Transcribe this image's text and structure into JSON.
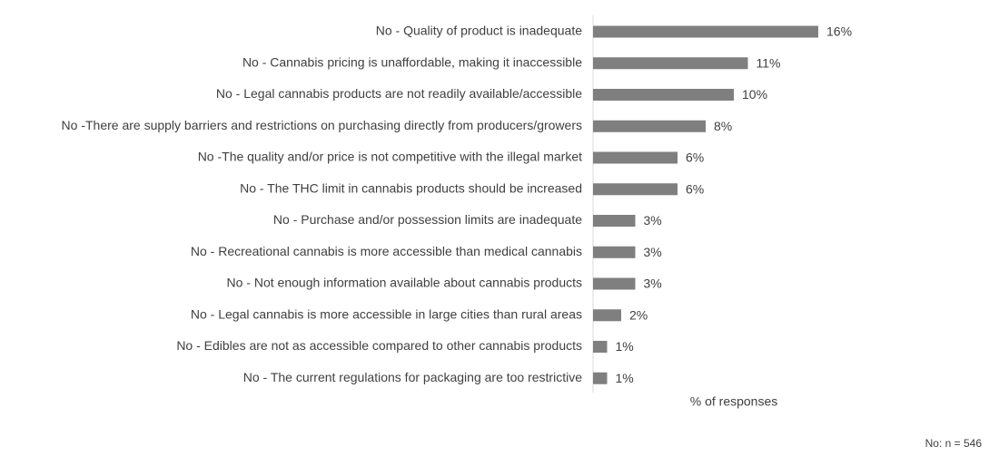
{
  "chart_data": {
    "type": "bar",
    "orientation": "horizontal",
    "categories": [
      "No - Quality of product is inadequate",
      "No - Cannabis pricing is unaffordable, making it inaccessible",
      "No - Legal cannabis products are not readily available/accessible",
      "No -There are supply barriers and restrictions on purchasing directly from producers/growers",
      "No -The quality and/or price is not competitive with the illegal market",
      "No - The THC limit in cannabis products should be increased",
      "No - Purchase and/or possession limits are inadequate",
      "No - Recreational cannabis is more accessible than medical cannabis",
      "No - Not enough information available about cannabis products",
      "No - Legal cannabis is more accessible in large cities than rural areas",
      "No - Edibles are not as accessible compared to other cannabis products",
      "No - The current regulations for packaging are too restrictive"
    ],
    "values": [
      16,
      11,
      10,
      8,
      6,
      6,
      3,
      3,
      3,
      2,
      1,
      1
    ],
    "value_labels": [
      "16%",
      "11%",
      "10%",
      "8%",
      "6%",
      "6%",
      "3%",
      "3%",
      "3%",
      "2%",
      "1%",
      "1%"
    ],
    "color": "#7f7f7f",
    "x_label": "% of responses",
    "note": "No: n = 546"
  }
}
